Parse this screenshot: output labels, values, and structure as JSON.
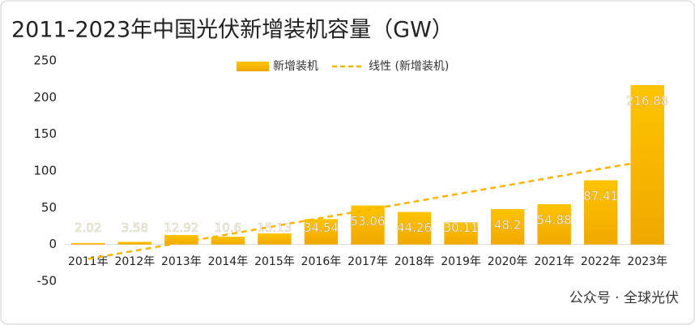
{
  "chart_data": {
    "type": "bar",
    "title": "2011-2023年中国光伏新增装机容量（GW）",
    "categories": [
      "2011年",
      "2012年",
      "2013年",
      "2014年",
      "2015年",
      "2016年",
      "2017年",
      "2018年",
      "2019年",
      "2020年",
      "2021年",
      "2022年",
      "2023年"
    ],
    "series": [
      {
        "name": "新增装机",
        "color": "#f7b500",
        "values": [
          2.02,
          3.58,
          12.92,
          10.6,
          15.13,
          34.54,
          53.06,
          44.26,
          30.11,
          48.2,
          54.88,
          87.41,
          216.88
        ]
      }
    ],
    "trendline": {
      "name": "线性 (新增装机)",
      "color": "#f7b500"
    },
    "ylim": [
      -50,
      250
    ],
    "yticks": [
      -50,
      0,
      50,
      100,
      150,
      200,
      250
    ],
    "legend": "top",
    "watermark": "公众号 · 全球光伏"
  }
}
